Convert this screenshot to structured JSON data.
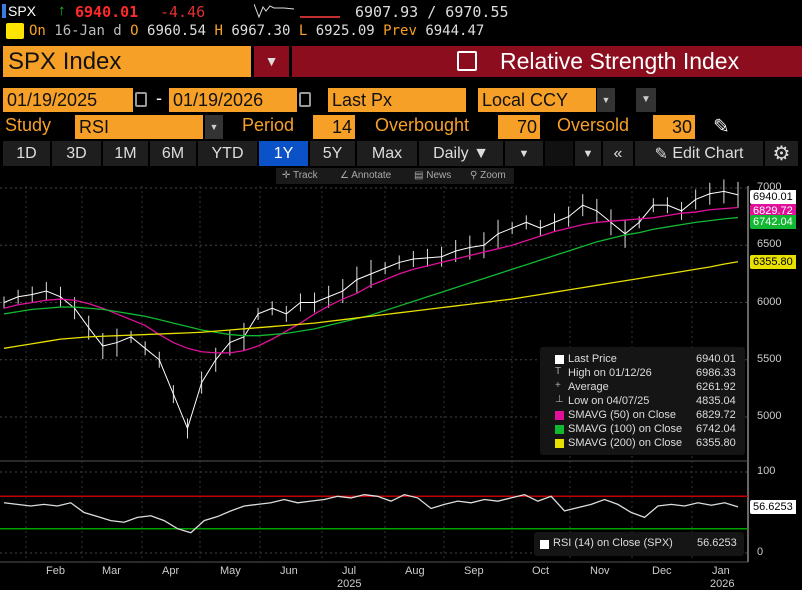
{
  "quote": {
    "ticker": "SPX",
    "arrow": "↑",
    "last": "6940.01",
    "change": "-4.46",
    "range": "6907.93 / 6970.55",
    "on_label": "On",
    "date": "16-Jan d",
    "o_label": "O",
    "open": "6960.54",
    "h_label": "H",
    "high": "6967.30",
    "l_label": "L",
    "low": "6925.09",
    "prev_label": "Prev",
    "prev": "6944.47"
  },
  "header": {
    "security": "SPX Index",
    "function_title": "Relative Strength Index"
  },
  "controls": {
    "start_date": "01/19/2025",
    "dash": "-",
    "end_date": "01/19/2026",
    "field": "Last Px",
    "currency": "Local CCY",
    "study_label": "Study",
    "study": "RSI",
    "period_label": "Period",
    "period": "14",
    "overbought_label": "Overbought",
    "overbought": "70",
    "oversold_label": "Oversold",
    "oversold": "30"
  },
  "ranges": [
    "1D",
    "3D",
    "1M",
    "6M",
    "YTD",
    "1Y",
    "5Y",
    "Max"
  ],
  "active_range": "1Y",
  "frequency": "Daily ▼",
  "edit_chart": "Edit Chart",
  "toolbar": {
    "track": "Track",
    "annotate": "Annotate",
    "news": "News",
    "zoom": "Zoom"
  },
  "colors": {
    "orange": "#f7a028",
    "header_red": "#8b0d1e",
    "active_blue": "#0b52c8",
    "sma50": "#e0109a",
    "sma100": "#12b832",
    "sma200": "#e8e000",
    "overbought": "#c00000",
    "oversold": "#00a000"
  },
  "legend": [
    {
      "label": "Last Price",
      "value": "6940.01"
    },
    {
      "label": "High on 01/12/26",
      "value": "6986.33"
    },
    {
      "label": "Average",
      "value": "6261.92"
    },
    {
      "label": "Low on 04/07/25",
      "value": "4835.04"
    },
    {
      "label": "SMAVG (50)  on Close",
      "value": "6829.72"
    },
    {
      "label": "SMAVG (100)  on Close",
      "value": "6742.04"
    },
    {
      "label": "SMAVG (200)  on Close",
      "value": "6355.80"
    }
  ],
  "price_tags": {
    "last": "6940.01",
    "sma50": "6829.72",
    "sma100": "6742.04",
    "sma200": "6355.80"
  },
  "rsi_legend": {
    "label": "RSI (14)  on Close (SPX)",
    "value": "56.6253"
  },
  "rsi_tag": "56.6253",
  "chart_data": {
    "type": "line",
    "price_axis": {
      "ticks": [
        "7000",
        "6500",
        "6000",
        "5500",
        "5000"
      ],
      "range": [
        4800,
        7000
      ]
    },
    "rsi_axis": {
      "ticks": [
        "100",
        "0"
      ],
      "range": [
        0,
        100
      ],
      "overbought": 70,
      "oversold": 30
    },
    "months": [
      "Feb",
      "Mar",
      "Apr",
      "May",
      "Jun",
      "Jul",
      "Aug",
      "Sep",
      "Oct",
      "Nov",
      "Dec",
      "Jan"
    ],
    "years": [
      "2025",
      "2026"
    ],
    "series": [
      {
        "name": "Last Price",
        "values": [
          6000,
          6050,
          6070,
          6100,
          6050,
          5950,
          5780,
          5620,
          5650,
          5700,
          5600,
          5500,
          5200,
          4900,
          5300,
          5500,
          5650,
          5700,
          5900,
          5950,
          5900,
          6000,
          6000,
          6050,
          6100,
          6200,
          6250,
          6300,
          6350,
          6380,
          6390,
          6400,
          6450,
          6480,
          6500,
          6600,
          6650,
          6700,
          6650,
          6700,
          6750,
          6850,
          6800,
          6700,
          6600,
          6700,
          6850,
          6850,
          6800,
          6900,
          6950,
          6970,
          6940
        ]
      },
      {
        "name": "SMAVG (50)",
        "values": [
          5950,
          5980,
          6000,
          6020,
          6030,
          6020,
          5990,
          5950,
          5900,
          5850,
          5800,
          5720,
          5650,
          5600,
          5570,
          5560,
          5560,
          5580,
          5620,
          5680,
          5750,
          5820,
          5900,
          5970,
          6030,
          6080,
          6150,
          6200,
          6250,
          6290,
          6320,
          6350,
          6380,
          6410,
          6440,
          6470,
          6500,
          6540,
          6580,
          6620,
          6650,
          6680,
          6700,
          6710,
          6720,
          6730,
          6740,
          6760,
          6780,
          6790,
          6810,
          6820,
          6830
        ]
      },
      {
        "name": "SMAVG (100)",
        "values": [
          5900,
          5920,
          5940,
          5950,
          5960,
          5960,
          5950,
          5940,
          5920,
          5900,
          5880,
          5850,
          5820,
          5790,
          5760,
          5740,
          5720,
          5710,
          5710,
          5720,
          5730,
          5750,
          5770,
          5800,
          5830,
          5860,
          5890,
          5930,
          5970,
          6010,
          6050,
          6090,
          6130,
          6170,
          6210,
          6250,
          6290,
          6330,
          6370,
          6410,
          6450,
          6490,
          6530,
          6560,
          6590,
          6610,
          6640,
          6660,
          6680,
          6700,
          6715,
          6730,
          6742
        ]
      },
      {
        "name": "SMAVG (200)",
        "values": [
          5600,
          5620,
          5640,
          5660,
          5680,
          5690,
          5700,
          5705,
          5710,
          5715,
          5720,
          5725,
          5730,
          5735,
          5740,
          5750,
          5760,
          5770,
          5780,
          5790,
          5800,
          5810,
          5820,
          5835,
          5850,
          5865,
          5880,
          5895,
          5910,
          5925,
          5940,
          5955,
          5970,
          5985,
          6000,
          6015,
          6030,
          6050,
          6070,
          6090,
          6110,
          6130,
          6150,
          6170,
          6190,
          6210,
          6230,
          6250,
          6270,
          6290,
          6310,
          6335,
          6356
        ]
      },
      {
        "name": "RSI (14)",
        "values": [
          62,
          60,
          58,
          60,
          58,
          62,
          50,
          45,
          40,
          38,
          44,
          46,
          40,
          30,
          25,
          40,
          45,
          52,
          58,
          60,
          62,
          66,
          62,
          64,
          66,
          70,
          68,
          72,
          70,
          64,
          72,
          68,
          55,
          60,
          64,
          62,
          66,
          64,
          68,
          72,
          64,
          70,
          52,
          56,
          60,
          66,
          60,
          50,
          44,
          58,
          60,
          58,
          62,
          59,
          62,
          57
        ]
      }
    ]
  }
}
